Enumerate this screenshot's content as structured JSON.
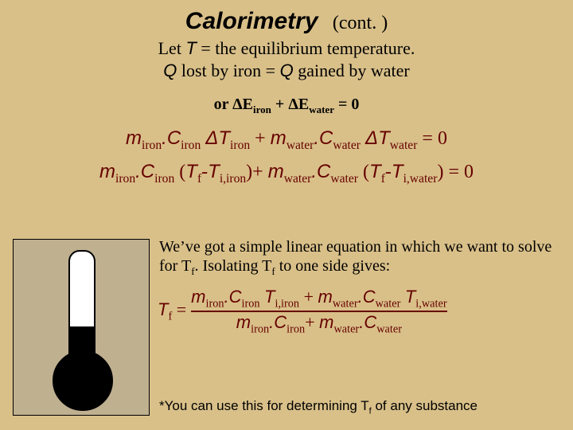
{
  "colors": {
    "slide_bg": "#d9c089",
    "title_color": "#000000",
    "text_color": "#000000",
    "dark_red": "#660000",
    "thermo_bg": "#bfb090",
    "thermo_fluid": "#000000",
    "frac_border": "#660000"
  },
  "title": {
    "main": "Calorimetry",
    "cont": "(cont. )"
  },
  "lines": {
    "let": "Let ",
    "T": "T",
    "let2": " = the equilibrium temperature.",
    "q1a": "Q",
    "q1b": " lost by iron = ",
    "q1c": "Q",
    "q1d": " gained by water",
    "or_pre": "or ",
    "dE": "ΔE",
    "iron": "iron",
    "plus": " + ",
    "water": "water",
    "eq0": " = 0"
  },
  "eq1": {
    "m": "m",
    "C": "C",
    "dT": "ΔT",
    "iron": "iron",
    "water": "water",
    "dot": ".",
    "plus": " + ",
    "eq0": " = 0"
  },
  "eq2": {
    "m": "m",
    "C": "C",
    "open": " (",
    "Tf": "T",
    "fsub": "f",
    "dash": "-",
    "Ti": "T",
    "isub_iron": "i,iron",
    "close": ")",
    "plus": "+ ",
    "iron": "iron",
    "water": "water",
    "isub_water": "i,water",
    "eq0": " = 0",
    "dot": "."
  },
  "para": {
    "t1": "We’ve got a simple linear equation in which we want to solve for T",
    "fsub": "f",
    "t2": ". Isolating T",
    "t3": " to one side gives:"
  },
  "tf": {
    "Tf_label_T": "T",
    "Tf_label_f": "f",
    "equals": " = ",
    "m": "m",
    "C": "C",
    "T": "T",
    "iron": "iron",
    "water": "water",
    "i_iron": "i,iron",
    "i_water": "i,water",
    "plus": " + ",
    "plus2": "+ ",
    "dot": "."
  },
  "footnote": {
    "star": "*You can use this for determining T",
    "f": "f",
    "rest": "  of any substance"
  },
  "fonts": {
    "title_size": 30,
    "body_size": 22,
    "foot_size": 17
  }
}
